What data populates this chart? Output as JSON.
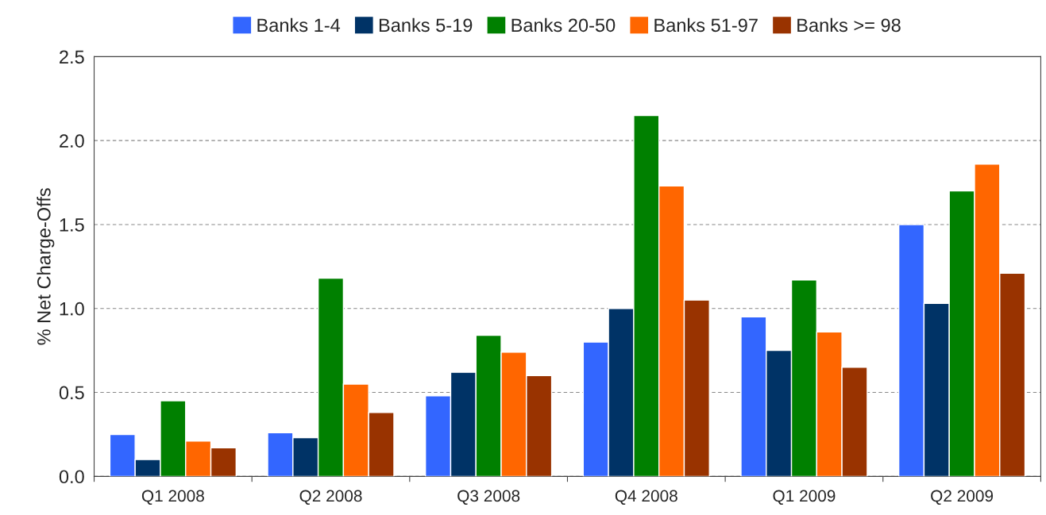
{
  "chart_data": {
    "type": "bar",
    "ylabel": "% Net Charge-Offs",
    "categories": [
      "Q1 2008",
      "Q2 2008",
      "Q3 2008",
      "Q4 2008",
      "Q1 2009",
      "Q2 2009"
    ],
    "series": [
      {
        "name": "Banks 1-4",
        "color": "#3366ff",
        "values": [
          0.25,
          0.26,
          0.48,
          0.8,
          0.95,
          1.5
        ]
      },
      {
        "name": "Banks 5-19",
        "color": "#003366",
        "values": [
          0.1,
          0.23,
          0.62,
          1.0,
          0.75,
          1.03
        ]
      },
      {
        "name": "Banks 20-50",
        "color": "#008000",
        "values": [
          0.45,
          1.18,
          0.84,
          2.15,
          1.17,
          1.7
        ]
      },
      {
        "name": "Banks 51-97",
        "color": "#ff6600",
        "values": [
          0.21,
          0.55,
          0.74,
          1.73,
          0.86,
          1.86
        ]
      },
      {
        "name": "Banks >= 98",
        "color": "#993300",
        "values": [
          0.17,
          0.38,
          0.6,
          1.05,
          0.65,
          1.21
        ]
      }
    ],
    "ylim": [
      0,
      2.5
    ],
    "yticks": [
      {
        "value": 0,
        "label": "0.0"
      },
      {
        "value": 0.5,
        "label": "0.5"
      },
      {
        "value": 1,
        "label": "1.0"
      },
      {
        "value": 1.5,
        "label": "1.5"
      },
      {
        "value": 2,
        "label": "2.0"
      },
      {
        "value": 2.5,
        "label": "2.5"
      }
    ],
    "grid": "y",
    "legend": "top"
  }
}
